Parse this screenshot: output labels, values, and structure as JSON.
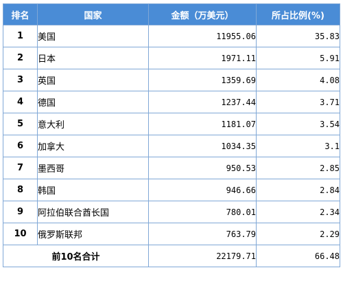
{
  "table": {
    "headers": {
      "rank": "排名",
      "country": "国家",
      "amount": "金额（万美元）",
      "share": "所占比例(%)"
    },
    "rows": [
      {
        "rank": "1",
        "country": "美国",
        "amount": "11955.06",
        "share": "35.83"
      },
      {
        "rank": "2",
        "country": "日本",
        "amount": "1971.11",
        "share": "5.91"
      },
      {
        "rank": "3",
        "country": "英国",
        "amount": "1359.69",
        "share": "4.08"
      },
      {
        "rank": "4",
        "country": "德国",
        "amount": "1237.44",
        "share": "3.71"
      },
      {
        "rank": "5",
        "country": "意大利",
        "amount": "1181.07",
        "share": "3.54"
      },
      {
        "rank": "6",
        "country": "加拿大",
        "amount": "1034.35",
        "share": "3.1"
      },
      {
        "rank": "7",
        "country": "墨西哥",
        "amount": "950.53",
        "share": "2.85"
      },
      {
        "rank": "8",
        "country": "韩国",
        "amount": "946.66",
        "share": "2.84"
      },
      {
        "rank": "9",
        "country": "阿拉伯联合酋长国",
        "amount": "780.01",
        "share": "2.34"
      },
      {
        "rank": "10",
        "country": "俄罗斯联邦",
        "amount": "763.79",
        "share": "2.29"
      }
    ],
    "total": {
      "label": "前10名合计",
      "amount": "22179.71",
      "share": "66.48"
    },
    "header_color": "#4a8cd6",
    "border_color": "#7fa7d6"
  }
}
